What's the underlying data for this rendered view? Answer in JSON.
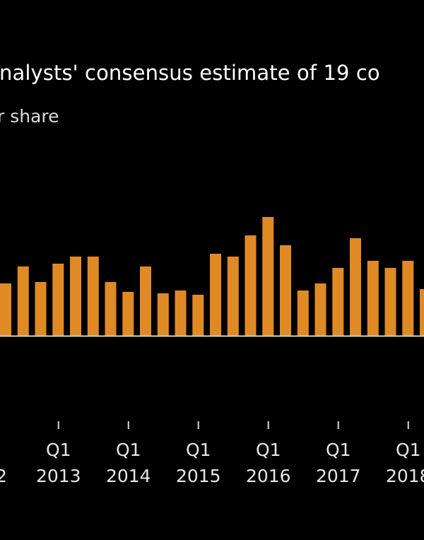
{
  "chart_data": {
    "type": "bar",
    "title": "...analysts' consensus estimate of 19 co...",
    "subtitle": "...r share",
    "xlabel": "",
    "ylabel": "",
    "ylim": [
      0,
      2.0
    ],
    "grid": false,
    "legend": "none",
    "bar_color": "#e08a26",
    "baseline_color": "#cfcfcf",
    "value_note": "No y-axis scale visible; values are relative bar heights",
    "categories": [
      "Q2 2012",
      "Q3 2012",
      "Q4 2012",
      "Q1 2013",
      "Q2 2013",
      "Q3 2013",
      "Q4 2013",
      "Q1 2014",
      "Q2 2014",
      "Q3 2014",
      "Q4 2014",
      "Q1 2015",
      "Q2 2015",
      "Q3 2015",
      "Q4 2015",
      "Q1 2016",
      "Q2 2016",
      "Q3 2016",
      "Q4 2016",
      "Q1 2017",
      "Q2 2017",
      "Q3 2017",
      "Q4 2017",
      "Q1 2018",
      "Q2 2018"
    ],
    "values": [
      0.74,
      0.98,
      0.76,
      1.02,
      1.12,
      1.12,
      0.76,
      0.62,
      0.98,
      0.6,
      0.64,
      0.58,
      1.16,
      1.12,
      1.42,
      1.68,
      1.28,
      0.64,
      0.74,
      0.96,
      1.38,
      1.06,
      0.96,
      1.06,
      0.66
    ],
    "x_ticks": [
      {
        "category": "Q1 2013",
        "quarter": "Q1",
        "year": "2013"
      },
      {
        "category": "Q1 2014",
        "quarter": "Q1",
        "year": "2014"
      },
      {
        "category": "Q1 2015",
        "quarter": "Q1",
        "year": "2015"
      },
      {
        "category": "Q1 2016",
        "quarter": "Q1",
        "year": "2016"
      },
      {
        "category": "Q1 2017",
        "quarter": "Q1",
        "year": "2017"
      },
      {
        "category": "Q1 2018",
        "quarter": "Q1",
        "year": "2018"
      }
    ],
    "partial_left_label": "2"
  }
}
